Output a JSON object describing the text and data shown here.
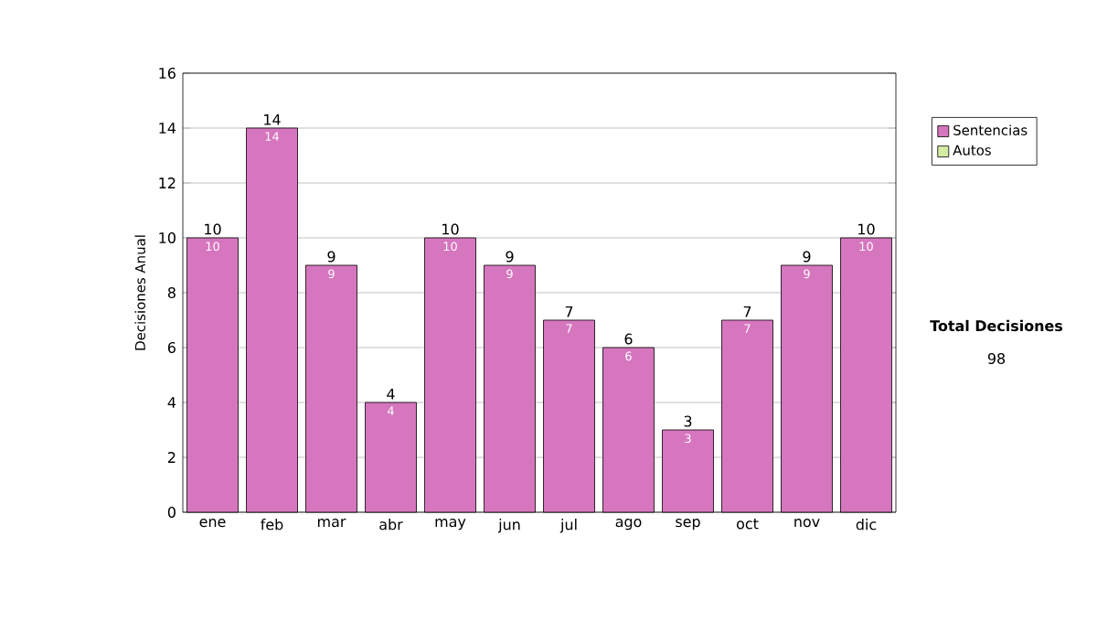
{
  "chart_data": {
    "type": "bar",
    "stacked": true,
    "ylabel": "Decisiones Anual",
    "categories": [
      "ene",
      "feb",
      "mar",
      "abr",
      "may",
      "jun",
      "jul",
      "ago",
      "sep",
      "oct",
      "nov",
      "dic"
    ],
    "series": [
      {
        "name": "Sentencias",
        "color": "#d676be",
        "values": [
          10,
          14,
          9,
          4,
          10,
          9,
          7,
          6,
          3,
          7,
          9,
          10
        ],
        "value_labels": [
          "10",
          "14",
          "9",
          "4",
          "10",
          "9",
          "7",
          "6",
          "3",
          "7",
          "9",
          "10"
        ]
      },
      {
        "name": "Autos",
        "color": "#d4eca4",
        "values": [
          0,
          0,
          0,
          0,
          0,
          0,
          0,
          0,
          0,
          0,
          0,
          0
        ]
      }
    ],
    "totals": [
      "10",
      "14",
      "9",
      "4",
      "10",
      "9",
      "7",
      "6",
      "3",
      "7",
      "9",
      "10"
    ],
    "ylim": [
      0,
      16
    ],
    "yticks": [
      0,
      2,
      4,
      6,
      8,
      10,
      12,
      14,
      16
    ],
    "grid": "y",
    "legend": "right",
    "annotations": [
      "Total Decisiones",
      "98"
    ]
  }
}
